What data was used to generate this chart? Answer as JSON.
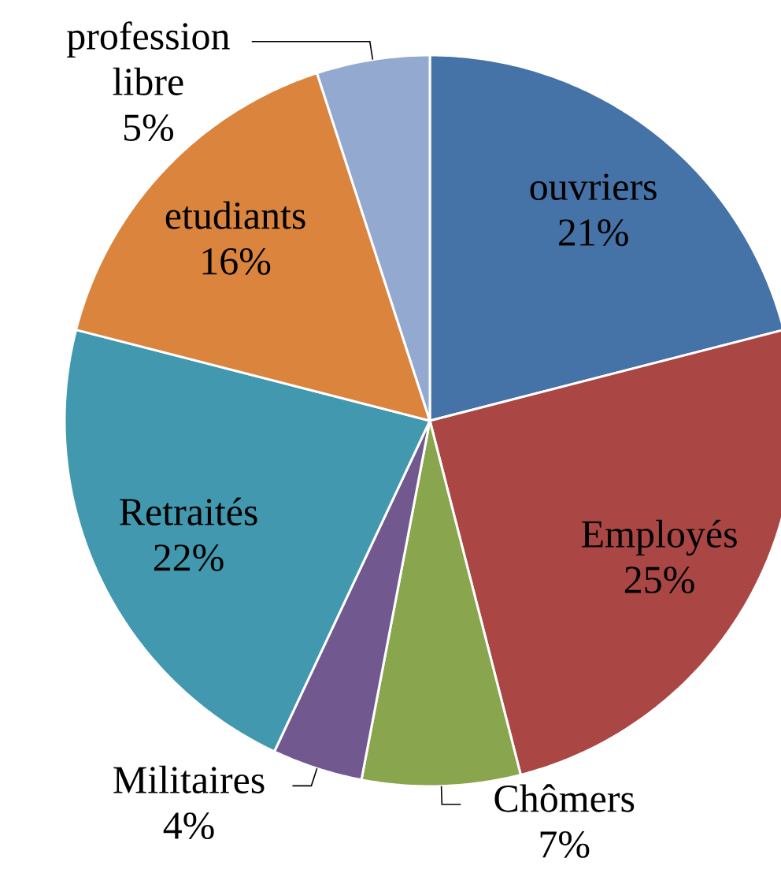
{
  "chart_data": {
    "type": "pie",
    "categories": [
      "ouvriers",
      "Employés",
      "Chômers",
      "Militaires",
      "Retraités",
      "etudiants",
      "profession libre"
    ],
    "values": [
      21,
      25,
      7,
      4,
      22,
      16,
      5
    ],
    "colors": [
      "#4572a7",
      "#aa4643",
      "#89a54e",
      "#71588f",
      "#4198af",
      "#db843d",
      "#93a9cf"
    ],
    "value_labels": [
      "21%",
      "25%",
      "7%",
      "4%",
      "22%",
      "16%",
      "5%"
    ]
  }
}
